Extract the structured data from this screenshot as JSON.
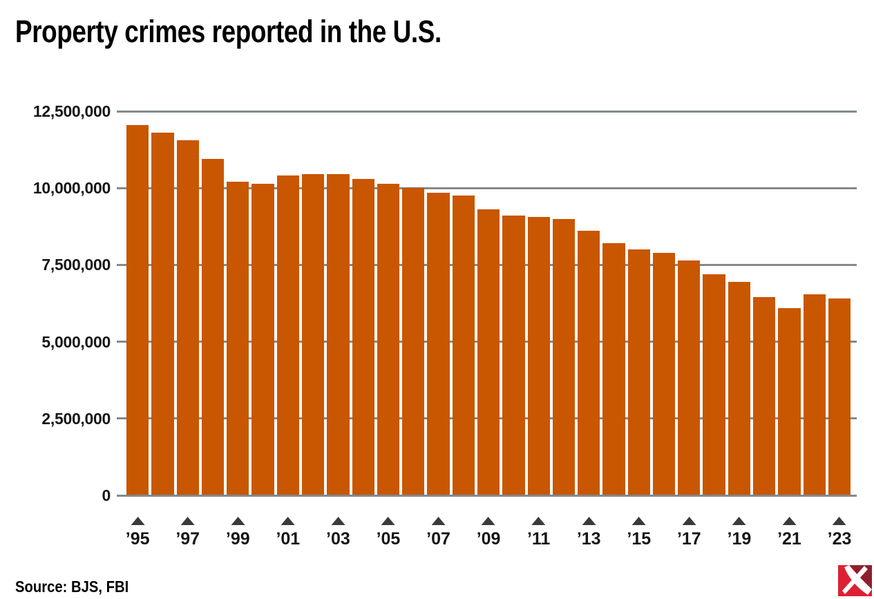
{
  "page": {
    "title": "Property crimes reported in the U.S."
  },
  "source": {
    "label": "Source: BJS, FBI"
  },
  "logo": {
    "name": "pickaxe-publisher-logo",
    "color_bright": "#DD2133",
    "color_dark": "#8E1F2D",
    "pick_color": "#FFFFFF"
  },
  "chart_data": {
    "type": "bar",
    "title": "Property crimes reported in the U.S.",
    "xlabel": "",
    "ylabel": "",
    "ylim": [
      0,
      12500000
    ],
    "grid": true,
    "legend": false,
    "bar_color": "#C95601",
    "gridline_color": "#828A8A",
    "marker_color": "#3A3A3A",
    "categories": [
      1995,
      1996,
      1997,
      1998,
      1999,
      2000,
      2001,
      2002,
      2003,
      2004,
      2005,
      2006,
      2007,
      2008,
      2009,
      2010,
      2011,
      2012,
      2013,
      2014,
      2015,
      2016,
      2017,
      2018,
      2019,
      2020,
      2021,
      2022,
      2023
    ],
    "values": [
      12050000,
      11800000,
      11550000,
      10950000,
      10200000,
      10150000,
      10400000,
      10450000,
      10450000,
      10300000,
      10150000,
      10000000,
      9850000,
      9750000,
      9300000,
      9100000,
      9050000,
      9000000,
      8600000,
      8200000,
      8000000,
      7900000,
      7650000,
      7200000,
      6950000,
      6450000,
      6100000,
      6550000,
      6400000
    ],
    "y_ticks": [
      0,
      2500000,
      5000000,
      7500000,
      10000000,
      12500000
    ],
    "y_tick_labels": [
      "0",
      "2,500,000",
      "5,000,000",
      "7,500,000",
      "10,000,000",
      "12,500,000"
    ],
    "x_tick_labels": [
      "’95",
      "’97",
      "’99",
      "’01",
      "’03",
      "’05",
      "’07",
      "’09",
      "’11",
      "’13",
      "’15",
      "’17",
      "’19",
      "’21",
      "’23"
    ]
  }
}
